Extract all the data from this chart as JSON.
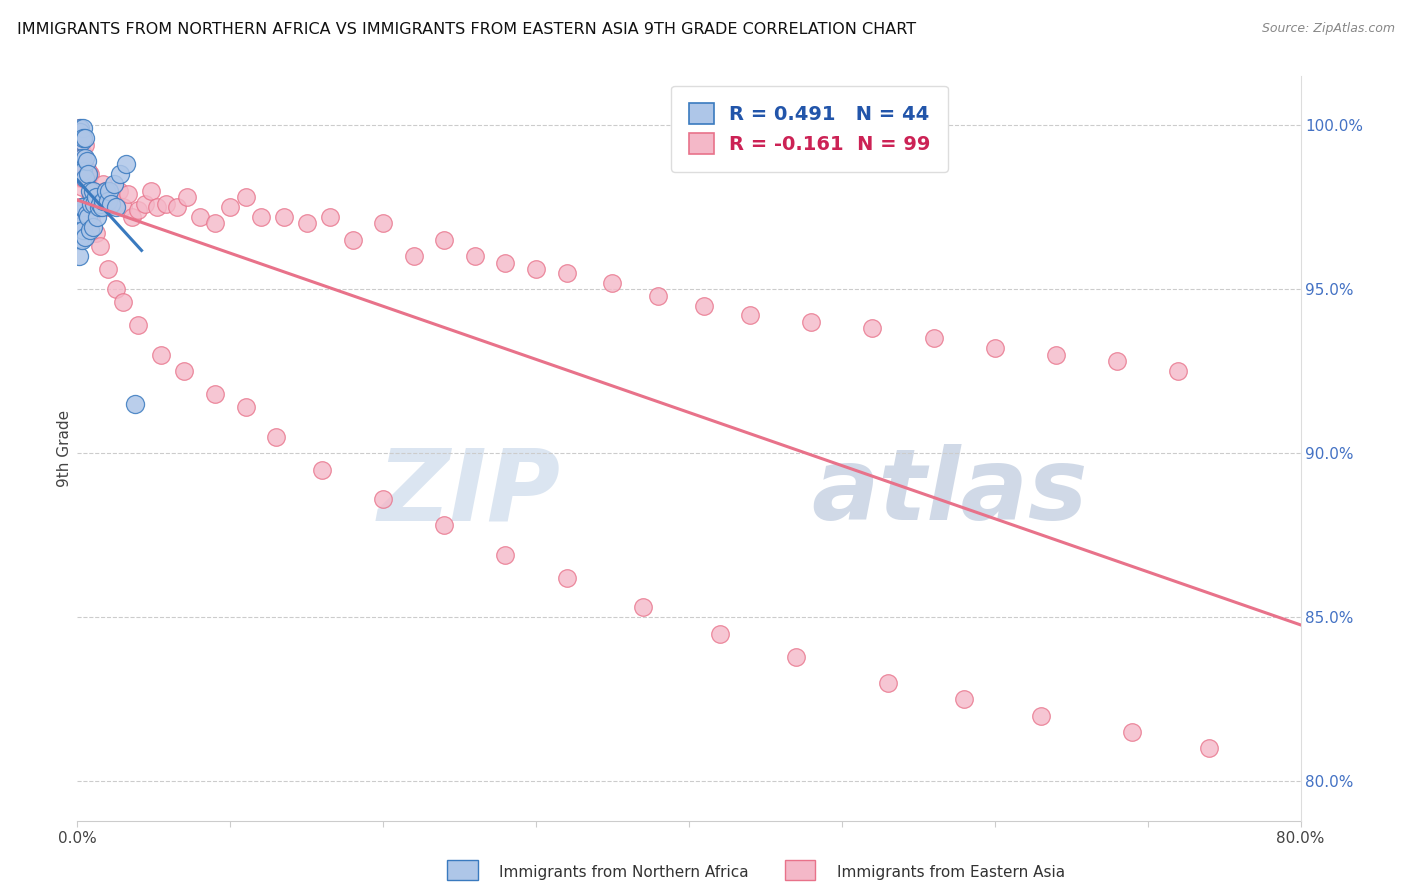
{
  "title": "IMMIGRANTS FROM NORTHERN AFRICA VS IMMIGRANTS FROM EASTERN ASIA 9TH GRADE CORRELATION CHART",
  "source": "Source: ZipAtlas.com",
  "ylabel": "9th Grade",
  "x_min": 0.0,
  "x_max": 0.8,
  "y_min": 0.788,
  "y_max": 1.015,
  "x_ticks": [
    0.0,
    0.1,
    0.2,
    0.3,
    0.4,
    0.5,
    0.6,
    0.7,
    0.8
  ],
  "x_tick_labels": [
    "0.0%",
    "",
    "",
    "",
    "",
    "",
    "",
    "",
    "80.0%"
  ],
  "y_ticks": [
    0.8,
    0.85,
    0.9,
    0.95,
    1.0
  ],
  "y_tick_labels": [
    "80.0%",
    "85.0%",
    "90.0%",
    "95.0%",
    "100.0%"
  ],
  "blue_color": "#aec6e8",
  "blue_line_color": "#3a7abf",
  "pink_color": "#f4b8c8",
  "pink_line_color": "#e8728a",
  "legend_blue_label": "R = 0.491   N = 44",
  "legend_pink_label": "R = -0.161  N = 99",
  "bottom_legend_blue": "Immigrants from Northern Africa",
  "bottom_legend_pink": "Immigrants from Eastern Asia",
  "watermark_zip": "ZIP",
  "watermark_atlas": "atlas",
  "blue_R": 0.491,
  "pink_R": -0.161,
  "blue_x": [
    0.001,
    0.001,
    0.001,
    0.002,
    0.002,
    0.002,
    0.003,
    0.003,
    0.003,
    0.003,
    0.004,
    0.004,
    0.004,
    0.004,
    0.004,
    0.005,
    0.005,
    0.005,
    0.005,
    0.006,
    0.006,
    0.007,
    0.007,
    0.008,
    0.008,
    0.009,
    0.01,
    0.01,
    0.011,
    0.012,
    0.013,
    0.014,
    0.015,
    0.016,
    0.017,
    0.019,
    0.02,
    0.021,
    0.022,
    0.024,
    0.025,
    0.028,
    0.032,
    0.038
  ],
  "blue_y": [
    0.969,
    0.965,
    0.96,
    0.999,
    0.998,
    0.973,
    0.995,
    0.99,
    0.975,
    0.965,
    0.999,
    0.996,
    0.986,
    0.975,
    0.968,
    0.996,
    0.99,
    0.984,
    0.966,
    0.989,
    0.973,
    0.985,
    0.972,
    0.98,
    0.968,
    0.976,
    0.98,
    0.969,
    0.976,
    0.978,
    0.972,
    0.975,
    0.976,
    0.975,
    0.977,
    0.98,
    0.977,
    0.98,
    0.976,
    0.982,
    0.975,
    0.985,
    0.988,
    0.915
  ],
  "pink_x": [
    0.001,
    0.001,
    0.001,
    0.002,
    0.002,
    0.003,
    0.003,
    0.003,
    0.004,
    0.004,
    0.004,
    0.005,
    0.005,
    0.006,
    0.006,
    0.007,
    0.007,
    0.008,
    0.008,
    0.009,
    0.01,
    0.011,
    0.012,
    0.013,
    0.014,
    0.015,
    0.016,
    0.017,
    0.018,
    0.02,
    0.022,
    0.025,
    0.027,
    0.03,
    0.033,
    0.036,
    0.04,
    0.044,
    0.048,
    0.052,
    0.058,
    0.065,
    0.072,
    0.08,
    0.09,
    0.1,
    0.11,
    0.12,
    0.135,
    0.15,
    0.165,
    0.18,
    0.2,
    0.22,
    0.24,
    0.26,
    0.28,
    0.3,
    0.32,
    0.35,
    0.38,
    0.41,
    0.44,
    0.48,
    0.52,
    0.56,
    0.6,
    0.64,
    0.68,
    0.72,
    0.002,
    0.003,
    0.005,
    0.007,
    0.009,
    0.012,
    0.015,
    0.02,
    0.025,
    0.03,
    0.04,
    0.055,
    0.07,
    0.09,
    0.11,
    0.13,
    0.16,
    0.2,
    0.24,
    0.28,
    0.32,
    0.37,
    0.42,
    0.47,
    0.53,
    0.58,
    0.63,
    0.69,
    0.74
  ],
  "pink_y": [
    0.999,
    0.998,
    0.975,
    0.99,
    0.984,
    0.992,
    0.981,
    0.97,
    0.99,
    0.984,
    0.971,
    0.987,
    0.975,
    0.985,
    0.976,
    0.984,
    0.975,
    0.985,
    0.97,
    0.978,
    0.98,
    0.979,
    0.977,
    0.975,
    0.978,
    0.979,
    0.976,
    0.982,
    0.98,
    0.975,
    0.978,
    0.976,
    0.98,
    0.975,
    0.979,
    0.972,
    0.974,
    0.976,
    0.98,
    0.975,
    0.976,
    0.975,
    0.978,
    0.972,
    0.97,
    0.975,
    0.978,
    0.972,
    0.972,
    0.97,
    0.972,
    0.965,
    0.97,
    0.96,
    0.965,
    0.96,
    0.958,
    0.956,
    0.955,
    0.952,
    0.948,
    0.945,
    0.942,
    0.94,
    0.938,
    0.935,
    0.932,
    0.93,
    0.928,
    0.925,
    0.988,
    0.997,
    0.994,
    0.986,
    0.971,
    0.967,
    0.963,
    0.956,
    0.95,
    0.946,
    0.939,
    0.93,
    0.925,
    0.918,
    0.914,
    0.905,
    0.895,
    0.886,
    0.878,
    0.869,
    0.862,
    0.853,
    0.845,
    0.838,
    0.83,
    0.825,
    0.82,
    0.815,
    0.81
  ]
}
